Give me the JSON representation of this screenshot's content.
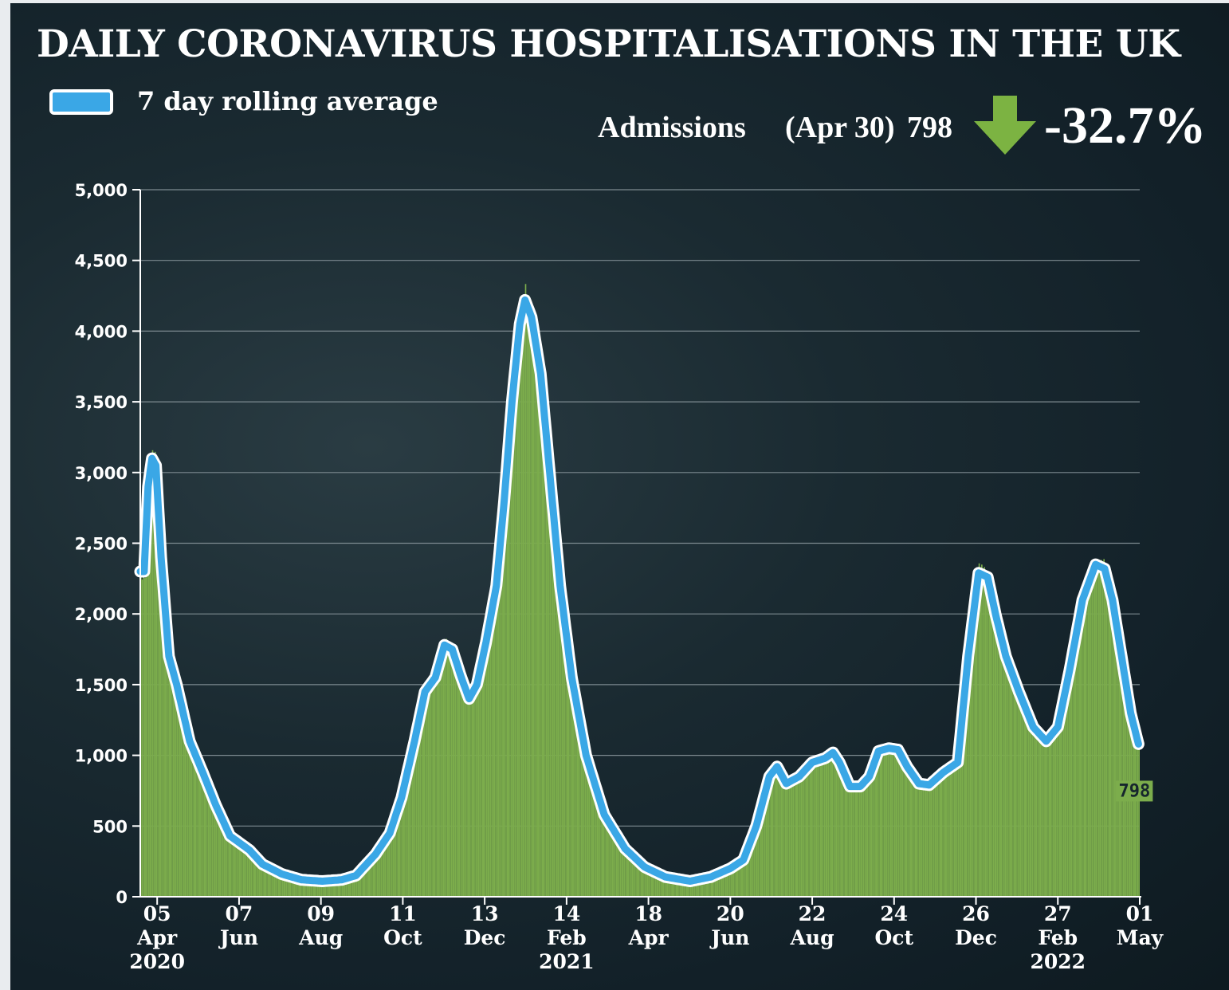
{
  "header": {
    "title": "DAILY CORONAVIRUS HOSPITALISATIONS IN THE UK",
    "legend_label": "7 day rolling average",
    "admissions_label": "Admissions",
    "admissions_date": "(Apr 30)",
    "admissions_value": "798",
    "change_value": "-32.7%",
    "arrow_icon": "arrow-down-icon"
  },
  "colors": {
    "bars": "#7cad4c",
    "line": "#3aa7e6",
    "line_outline": "#ffffff",
    "arrow": "#7cb342",
    "grid": "#7d8a90"
  },
  "chart_data": {
    "type": "bar",
    "title": "DAILY CORONAVIRUS HOSPITALISATIONS IN THE UK",
    "xlabel": "",
    "ylabel": "",
    "ylim": [
      0,
      5000
    ],
    "yticks": [
      0,
      500,
      1000,
      1500,
      2000,
      2500,
      3000,
      3500,
      4000,
      4500,
      5000
    ],
    "ytick_labels": [
      "0",
      "500",
      "1,000",
      "1,500",
      "2,000",
      "2,500",
      "3,000",
      "3,500",
      "4,000",
      "4,500",
      "5,000"
    ],
    "grid": true,
    "xlim": [
      "2020-03-23",
      "2022-05-01"
    ],
    "xticks": [
      {
        "date": "2020-04-05",
        "lines": [
          "05",
          "Apr",
          "2020"
        ]
      },
      {
        "date": "2020-06-07",
        "lines": [
          "07",
          "Jun"
        ]
      },
      {
        "date": "2020-08-09",
        "lines": [
          "09",
          "Aug"
        ]
      },
      {
        "date": "2020-10-11",
        "lines": [
          "11",
          "Oct"
        ]
      },
      {
        "date": "2020-12-13",
        "lines": [
          "13",
          "Dec"
        ]
      },
      {
        "date": "2021-02-14",
        "lines": [
          "14",
          "Feb",
          "2021"
        ]
      },
      {
        "date": "2021-04-18",
        "lines": [
          "18",
          "Apr"
        ]
      },
      {
        "date": "2021-06-20",
        "lines": [
          "20",
          "Jun"
        ]
      },
      {
        "date": "2021-08-22",
        "lines": [
          "22",
          "Aug"
        ]
      },
      {
        "date": "2021-10-24",
        "lines": [
          "24",
          "Oct"
        ]
      },
      {
        "date": "2021-12-26",
        "lines": [
          "26",
          "Dec"
        ]
      },
      {
        "date": "2022-02-27",
        "lines": [
          "27",
          "Feb",
          "2022"
        ]
      },
      {
        "date": "2022-05-01",
        "lines": [
          "01",
          "May"
        ]
      }
    ],
    "series": [
      {
        "name": "7 day rolling average",
        "kind": "line",
        "points": [
          [
            "2020-03-23",
            2300
          ],
          [
            "2020-03-26",
            2300
          ],
          [
            "2020-03-29",
            2900
          ],
          [
            "2020-04-01",
            3100
          ],
          [
            "2020-04-04",
            3050
          ],
          [
            "2020-04-08",
            2400
          ],
          [
            "2020-04-14",
            1700
          ],
          [
            "2020-04-20",
            1500
          ],
          [
            "2020-04-30",
            1100
          ],
          [
            "2020-05-10",
            880
          ],
          [
            "2020-05-20",
            650
          ],
          [
            "2020-05-31",
            430
          ],
          [
            "2020-06-15",
            330
          ],
          [
            "2020-06-25",
            230
          ],
          [
            "2020-07-10",
            160
          ],
          [
            "2020-07-25",
            120
          ],
          [
            "2020-08-10",
            110
          ],
          [
            "2020-08-25",
            120
          ],
          [
            "2020-09-05",
            150
          ],
          [
            "2020-09-20",
            300
          ],
          [
            "2020-10-01",
            450
          ],
          [
            "2020-10-10",
            700
          ],
          [
            "2020-10-20",
            1100
          ],
          [
            "2020-10-28",
            1450
          ],
          [
            "2020-11-05",
            1550
          ],
          [
            "2020-11-12",
            1780
          ],
          [
            "2020-11-18",
            1750
          ],
          [
            "2020-11-25",
            1550
          ],
          [
            "2020-12-01",
            1400
          ],
          [
            "2020-12-07",
            1500
          ],
          [
            "2020-12-14",
            1800
          ],
          [
            "2020-12-22",
            2200
          ],
          [
            "2020-12-28",
            2800
          ],
          [
            "2021-01-03",
            3500
          ],
          [
            "2021-01-09",
            4050
          ],
          [
            "2021-01-13",
            4220
          ],
          [
            "2021-01-18",
            4100
          ],
          [
            "2021-01-25",
            3700
          ],
          [
            "2021-02-01",
            3000
          ],
          [
            "2021-02-09",
            2200
          ],
          [
            "2021-02-18",
            1550
          ],
          [
            "2021-03-01",
            1000
          ],
          [
            "2021-03-15",
            580
          ],
          [
            "2021-03-31",
            340
          ],
          [
            "2021-04-15",
            210
          ],
          [
            "2021-05-01",
            140
          ],
          [
            "2021-05-20",
            110
          ],
          [
            "2021-06-05",
            140
          ],
          [
            "2021-06-20",
            200
          ],
          [
            "2021-06-30",
            260
          ],
          [
            "2021-07-10",
            500
          ],
          [
            "2021-07-20",
            850
          ],
          [
            "2021-07-26",
            920
          ],
          [
            "2021-08-02",
            800
          ],
          [
            "2021-08-12",
            850
          ],
          [
            "2021-08-22",
            950
          ],
          [
            "2021-09-01",
            980
          ],
          [
            "2021-09-07",
            1020
          ],
          [
            "2021-09-12",
            950
          ],
          [
            "2021-09-20",
            780
          ],
          [
            "2021-09-28",
            780
          ],
          [
            "2021-10-05",
            850
          ],
          [
            "2021-10-12",
            1030
          ],
          [
            "2021-10-20",
            1050
          ],
          [
            "2021-10-27",
            1040
          ],
          [
            "2021-11-03",
            920
          ],
          [
            "2021-11-12",
            800
          ],
          [
            "2021-11-20",
            790
          ],
          [
            "2021-12-01",
            880
          ],
          [
            "2021-12-12",
            950
          ],
          [
            "2021-12-20",
            1700
          ],
          [
            "2021-12-28",
            2290
          ],
          [
            "2022-01-04",
            2260
          ],
          [
            "2022-01-10",
            2000
          ],
          [
            "2022-01-18",
            1700
          ],
          [
            "2022-01-28",
            1450
          ],
          [
            "2022-02-08",
            1200
          ],
          [
            "2022-02-18",
            1100
          ],
          [
            "2022-02-27",
            1200
          ],
          [
            "2022-03-08",
            1600
          ],
          [
            "2022-03-18",
            2100
          ],
          [
            "2022-03-28",
            2350
          ],
          [
            "2022-04-04",
            2320
          ],
          [
            "2022-04-10",
            2100
          ],
          [
            "2022-04-17",
            1700
          ],
          [
            "2022-04-24",
            1300
          ],
          [
            "2022-04-30",
            1080
          ]
        ]
      }
    ],
    "annotations": [
      {
        "text": "798",
        "date": "2022-04-30",
        "value": 798
      }
    ]
  }
}
